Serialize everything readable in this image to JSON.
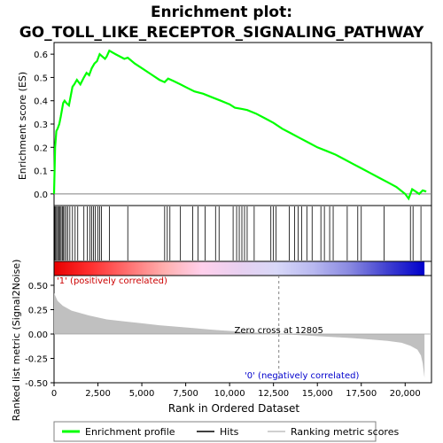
{
  "chart_data": {
    "type": "line",
    "title_line1": "Enrichment plot:",
    "title_line2": "GO_TOLL_LIKE_RECEPTOR_SIGNALING_PATHWAY",
    "es_panel": {
      "ylabel": "Enrichment score (ES)",
      "ylim": [
        -0.05,
        0.65
      ],
      "yticks": [
        "0.0",
        "0.1",
        "0.2",
        "0.3",
        "0.4",
        "0.5",
        "0.6"
      ],
      "ytick_values": [
        0.0,
        0.1,
        0.2,
        0.3,
        0.4,
        0.5,
        0.6
      ],
      "series_name": "Enrichment profile",
      "color": "#00ff00",
      "x": [
        0,
        60,
        130,
        200,
        300,
        380,
        450,
        520,
        600,
        700,
        850,
        950,
        1050,
        1150,
        1300,
        1500,
        1700,
        1850,
        2000,
        2150,
        2300,
        2450,
        2600,
        2750,
        2900,
        3000,
        3150,
        3500,
        4000,
        4200,
        4600,
        5000,
        5500,
        6000,
        6300,
        6500,
        6800,
        7200,
        7600,
        8000,
        8500,
        9000,
        9500,
        10000,
        10300,
        10700,
        11000,
        11500,
        12000,
        12500,
        13000,
        13500,
        14000,
        14500,
        15000,
        15500,
        16000,
        16500,
        17000,
        17500,
        18000,
        18500,
        19000,
        19500,
        20000,
        20200,
        20400,
        20600,
        20800,
        21000,
        21200
      ],
      "y": [
        0.0,
        0.2,
        0.27,
        0.28,
        0.3,
        0.33,
        0.36,
        0.39,
        0.4,
        0.39,
        0.38,
        0.42,
        0.46,
        0.47,
        0.49,
        0.47,
        0.5,
        0.52,
        0.51,
        0.54,
        0.56,
        0.57,
        0.6,
        0.59,
        0.58,
        0.59,
        0.615,
        0.6,
        0.58,
        0.585,
        0.56,
        0.54,
        0.515,
        0.49,
        0.48,
        0.495,
        0.485,
        0.47,
        0.455,
        0.44,
        0.43,
        0.415,
        0.4,
        0.385,
        0.37,
        0.365,
        0.36,
        0.345,
        0.325,
        0.305,
        0.28,
        0.26,
        0.24,
        0.22,
        0.2,
        0.185,
        0.17,
        0.15,
        0.13,
        0.11,
        0.09,
        0.07,
        0.05,
        0.03,
        0.0,
        -0.02,
        0.02,
        0.01,
        0.0,
        0.015,
        0.01
      ]
    },
    "hits": [
      40,
      90,
      150,
      210,
      280,
      340,
      400,
      470,
      520,
      600,
      690,
      780,
      900,
      1050,
      1200,
      1350,
      1700,
      1900,
      2050,
      2150,
      2250,
      2350,
      2500,
      2600,
      2700,
      3150,
      4200,
      6300,
      6450,
      6600,
      7200,
      7900,
      8200,
      8600,
      9200,
      9400,
      10200,
      10400,
      10550,
      10700,
      10850,
      11000,
      11400,
      12350,
      12500,
      12650,
      13400,
      13700,
      13900,
      14100,
      14400,
      14700,
      15200,
      15400,
      15700,
      15900,
      16700,
      17300,
      17500,
      18800,
      20300,
      20450,
      20900
    ],
    "ranked_panel": {
      "ylabel": "Ranked list metric (Signal2Noise)",
      "ylim": [
        -0.5,
        0.6
      ],
      "yticks": [
        "0.50",
        "0.25",
        "0.00",
        "-0.25",
        "-0.50"
      ],
      "ytick_values": [
        0.5,
        0.25,
        0.0,
        -0.25,
        -0.5
      ],
      "series_name": "Ranking metric scores",
      "x": [
        0,
        200,
        500,
        1000,
        2000,
        3000,
        4000,
        5000,
        6000,
        7000,
        8000,
        9000,
        10000,
        11000,
        12000,
        12805,
        14000,
        15000,
        16000,
        17000,
        18000,
        19000,
        19800,
        20300,
        20700,
        20900,
        21000,
        21100
      ],
      "y": [
        0.42,
        0.34,
        0.29,
        0.24,
        0.19,
        0.15,
        0.13,
        0.11,
        0.09,
        0.075,
        0.06,
        0.045,
        0.032,
        0.02,
        0.01,
        0.0,
        -0.012,
        -0.022,
        -0.032,
        -0.042,
        -0.055,
        -0.07,
        -0.09,
        -0.12,
        -0.16,
        -0.22,
        -0.3,
        -0.45
      ],
      "zero_cross_label": "Zero cross at 12805",
      "zero_cross_x": 12805,
      "pos_label": "'1' (positively correlated)",
      "neg_label": "'0' (negatively correlated)"
    },
    "xaxis": {
      "xlabel": "Rank in Ordered Dataset",
      "xlim": [
        0,
        21500
      ],
      "xticks": [
        "0",
        "2,500",
        "5,000",
        "7,500",
        "10,000",
        "12,500",
        "15,000",
        "17,500",
        "20,000"
      ],
      "xtick_values": [
        0,
        2500,
        5000,
        7500,
        10000,
        12500,
        15000,
        17500,
        20000
      ],
      "data_max_rank": 21100
    },
    "legend": {
      "placement": "bottom",
      "items": [
        {
          "label": "Enrichment profile",
          "color": "#00ff00",
          "kind": "line"
        },
        {
          "label": "Hits",
          "color": "#000000",
          "kind": "line"
        },
        {
          "label": "Ranking metric scores",
          "color": "#c0c0c0",
          "kind": "line"
        }
      ]
    },
    "colors": {
      "pos_label": "#cc0000",
      "neg_label": "#0000cc",
      "ranked_fill": "#c0c0c0",
      "zero_cross_line": "#808080",
      "bar_stops": [
        "#e80000",
        "#ff3030",
        "#ff7070",
        "#ffb0b0",
        "#ffd0ec",
        "#e8d0f0",
        "#d8d8f8",
        "#b8b8f0",
        "#8888e0",
        "#4040d0",
        "#0000cc"
      ]
    }
  }
}
